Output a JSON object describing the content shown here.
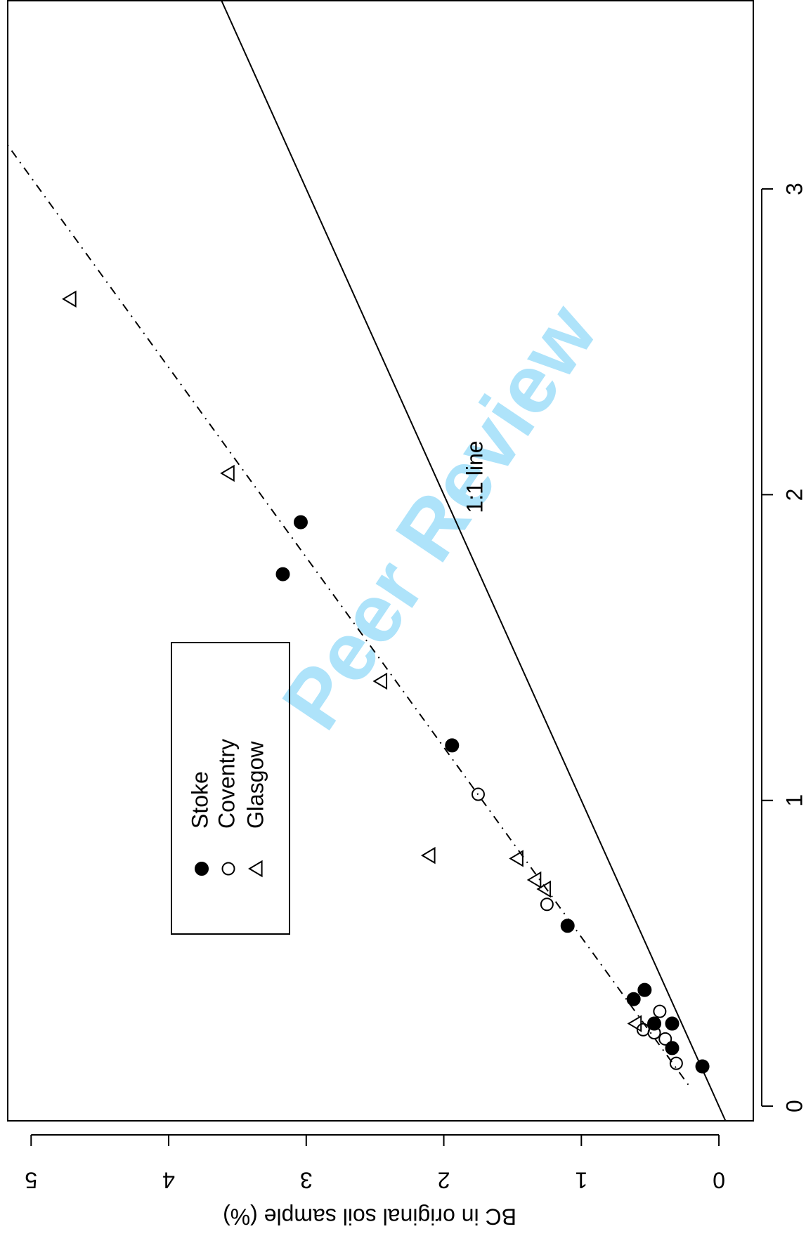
{
  "chart_data": {
    "type": "scatter",
    "y_label": "BC in original soil sample (%)",
    "xlim": [
      -0.048,
      3.618
    ],
    "ylim": [
      -0.25,
      5.17
    ],
    "xticks": [
      0,
      1,
      2,
      3
    ],
    "yticks": [
      0,
      1,
      2,
      3,
      4,
      5
    ],
    "series": [
      {
        "name": "Stoke",
        "marker": "filled-circle",
        "color": "#000000",
        "x": [
          0.13,
          0.19,
          0.27,
          0.27,
          0.35,
          0.38,
          0.59,
          1.18,
          1.74,
          1.91
        ],
        "values": [
          0.12,
          0.34,
          0.34,
          0.47,
          0.62,
          0.54,
          1.1,
          1.94,
          3.17,
          3.04
        ]
      },
      {
        "name": "Coventry",
        "marker": "open-circle",
        "color": "#000000",
        "x": [
          0.14,
          0.22,
          0.24,
          0.25,
          0.31,
          0.66,
          1.02
        ],
        "values": [
          0.31,
          0.39,
          0.47,
          0.55,
          0.43,
          1.25,
          1.75
        ]
      },
      {
        "name": "Glasgow",
        "marker": "open-triangle",
        "color": "#000000",
        "x": [
          0.27,
          0.71,
          0.74,
          0.81,
          0.82,
          1.39,
          2.07,
          2.64
        ],
        "values": [
          0.6,
          1.26,
          1.33,
          1.46,
          2.1,
          2.45,
          3.56,
          4.71
        ]
      }
    ],
    "lines": [
      {
        "label": "1:1 line",
        "slope": 1,
        "intercept": 0,
        "style": "solid"
      },
      {
        "slope": 1.61,
        "intercept": 0.11,
        "x_start": 0.07,
        "style": "dashdot"
      }
    ]
  },
  "watermark": "Peer Review"
}
